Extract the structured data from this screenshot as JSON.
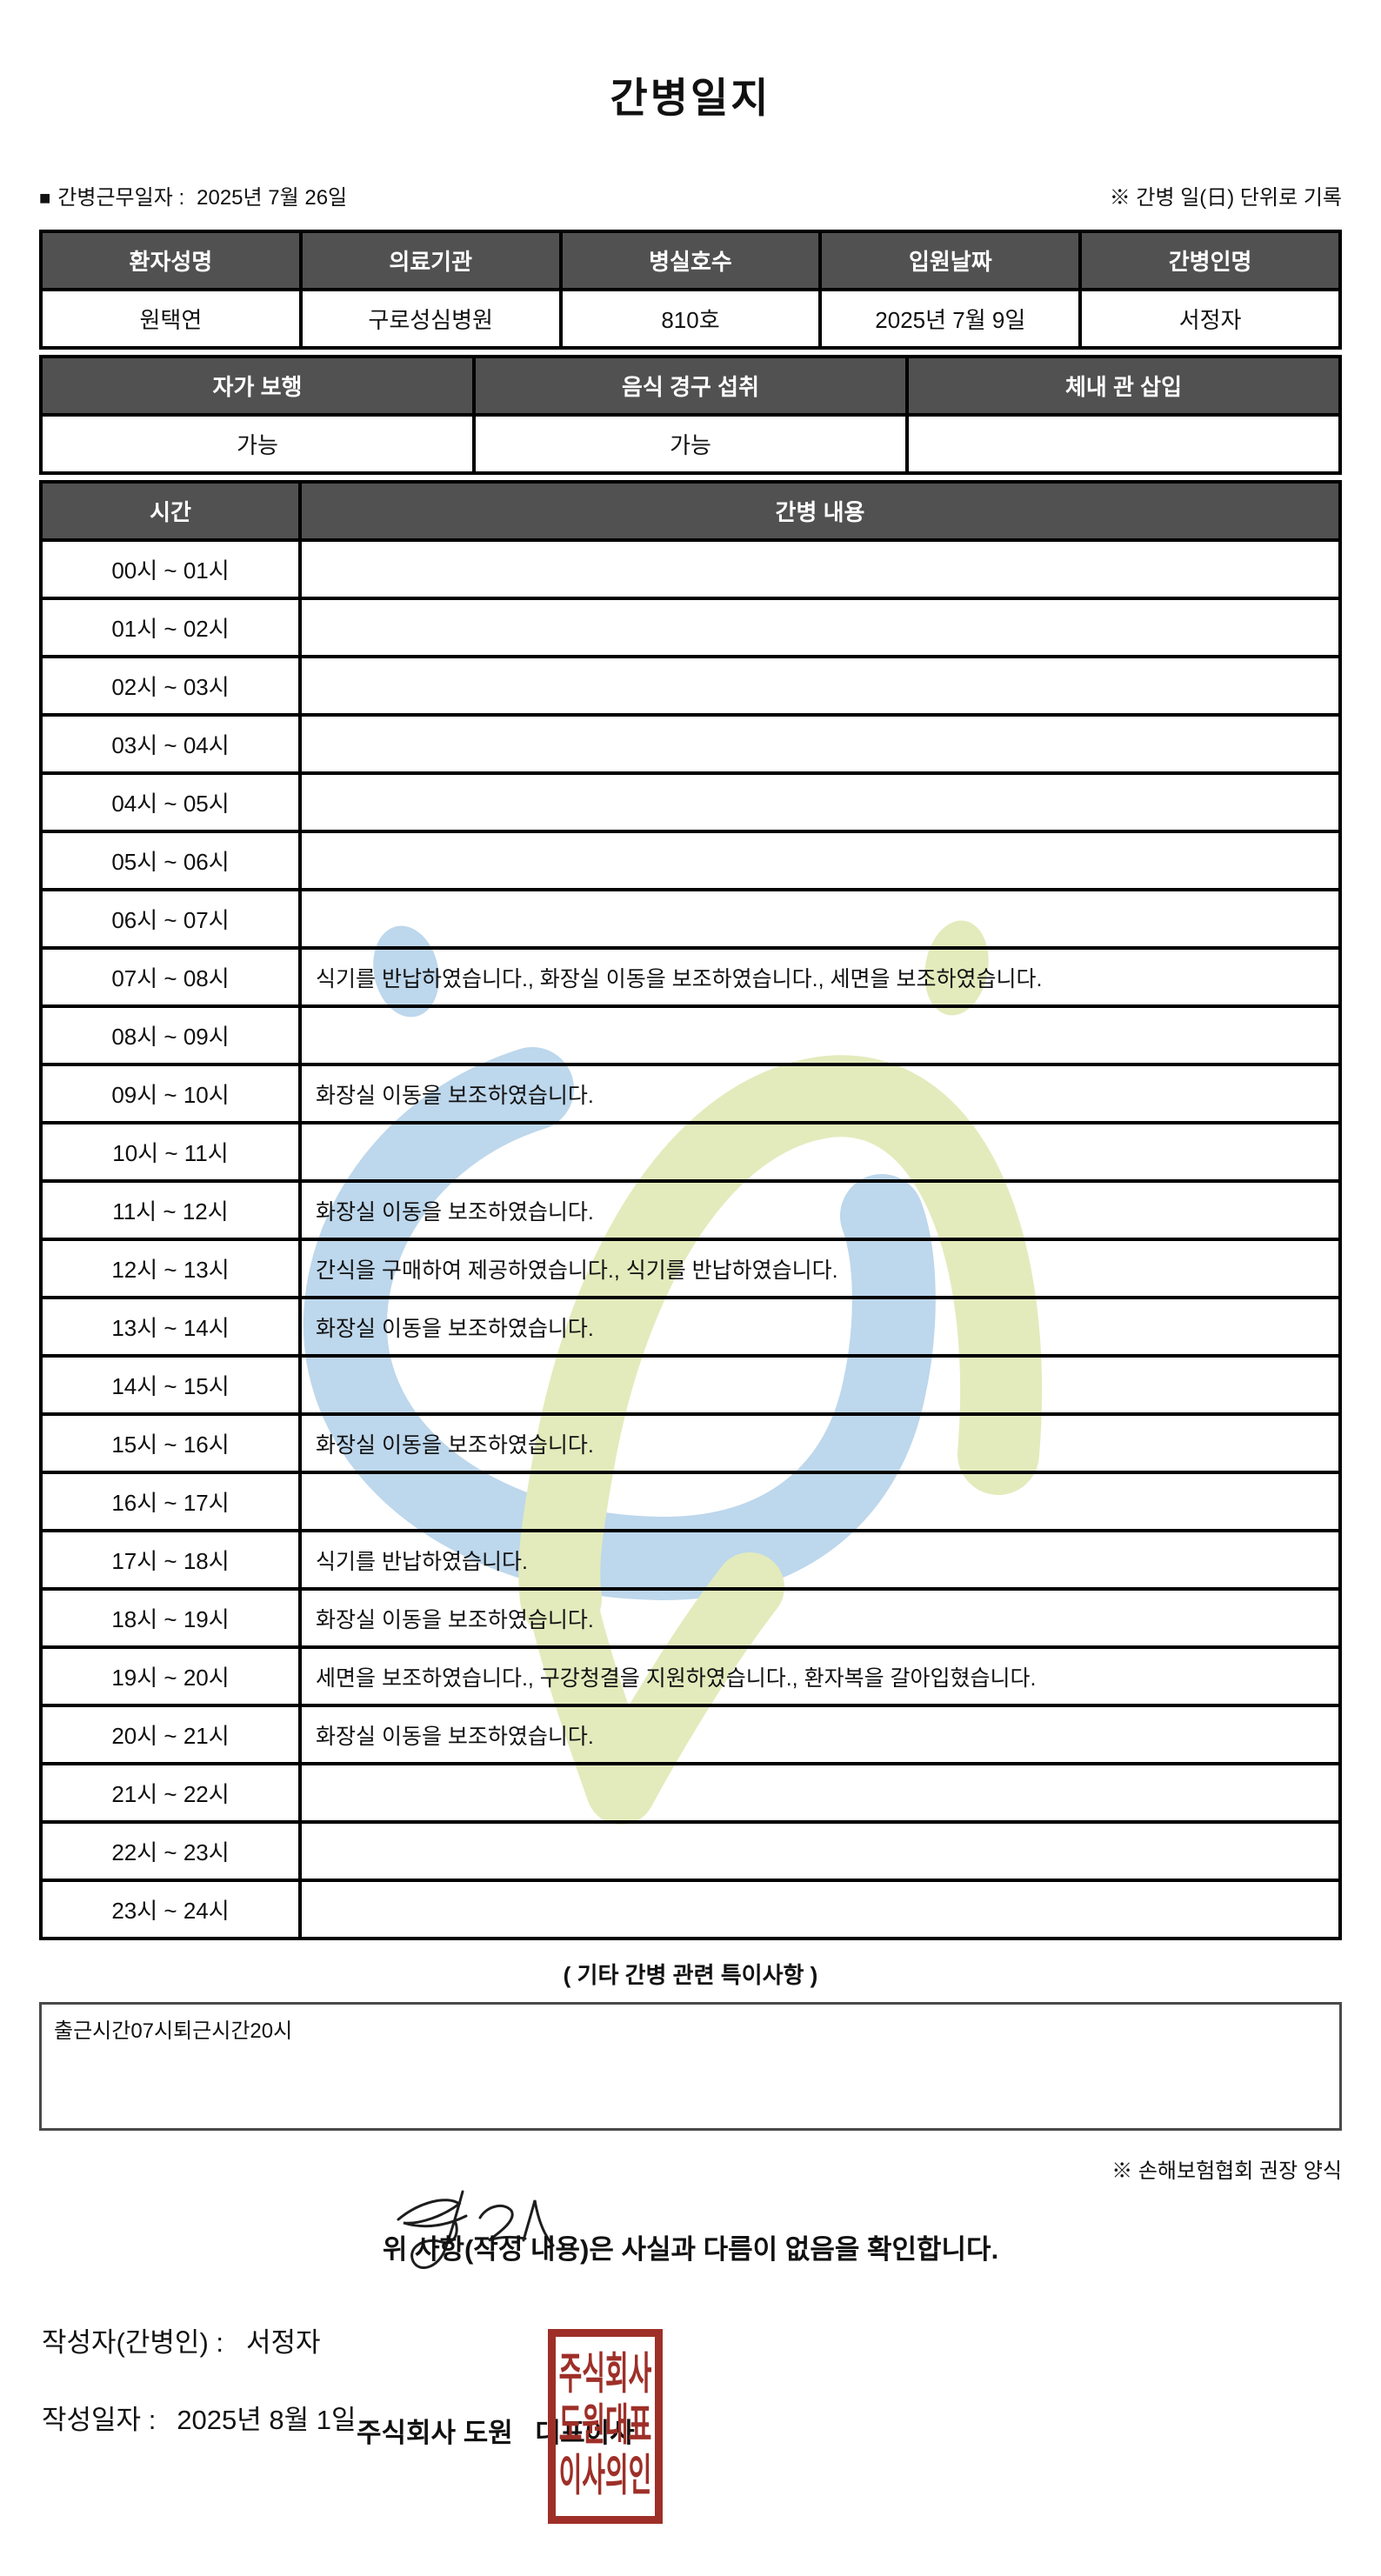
{
  "title": "간병일지",
  "meta": {
    "work_date_label": "간병근무일자 :",
    "work_date": "2025년 7월 26일",
    "unit_note": "※ 간병 일(日) 단위로 기록"
  },
  "patient_table": {
    "headers": [
      "환자성명",
      "의료기관",
      "병실호수",
      "입원날짜",
      "간병인명"
    ],
    "values": [
      "원택연",
      "구로성심병원",
      "810호",
      "2025년 7월 9일",
      "서정자"
    ]
  },
  "condition_table": {
    "headers": [
      "자가 보행",
      "음식 경구 섭취",
      "체내 관 삽입"
    ],
    "values": [
      "가능",
      "가능",
      ""
    ]
  },
  "care_table": {
    "time_header": "시간",
    "content_header": "간병 내용",
    "rows": [
      {
        "time": "00시 ~ 01시",
        "content": ""
      },
      {
        "time": "01시 ~ 02시",
        "content": ""
      },
      {
        "time": "02시 ~ 03시",
        "content": ""
      },
      {
        "time": "03시 ~ 04시",
        "content": ""
      },
      {
        "time": "04시 ~ 05시",
        "content": ""
      },
      {
        "time": "05시 ~ 06시",
        "content": ""
      },
      {
        "time": "06시 ~ 07시",
        "content": ""
      },
      {
        "time": "07시 ~ 08시",
        "content": "식기를 반납하였습니다., 화장실 이동을 보조하였습니다., 세면을 보조하였습니다."
      },
      {
        "time": "08시 ~ 09시",
        "content": ""
      },
      {
        "time": "09시 ~ 10시",
        "content": "화장실 이동을 보조하였습니다."
      },
      {
        "time": "10시 ~ 11시",
        "content": ""
      },
      {
        "time": "11시 ~ 12시",
        "content": "화장실 이동을 보조하였습니다."
      },
      {
        "time": "12시 ~ 13시",
        "content": "간식을 구매하여 제공하였습니다., 식기를 반납하였습니다."
      },
      {
        "time": "13시 ~ 14시",
        "content": "화장실 이동을 보조하였습니다."
      },
      {
        "time": "14시 ~ 15시",
        "content": ""
      },
      {
        "time": "15시 ~ 16시",
        "content": "화장실 이동을 보조하였습니다."
      },
      {
        "time": "16시 ~ 17시",
        "content": ""
      },
      {
        "time": "17시 ~ 18시",
        "content": "식기를 반납하였습니다."
      },
      {
        "time": "18시 ~ 19시",
        "content": "화장실 이동을 보조하였습니다."
      },
      {
        "time": "19시 ~ 20시",
        "content": "세면을 보조하였습니다., 구강청결을 지원하였습니다., 환자복을 갈아입혔습니다."
      },
      {
        "time": "20시 ~ 21시",
        "content": "화장실 이동을 보조하였습니다."
      },
      {
        "time": "21시 ~ 22시",
        "content": ""
      },
      {
        "time": "22시 ~ 23시",
        "content": ""
      },
      {
        "time": "23시 ~ 24시",
        "content": ""
      }
    ]
  },
  "notes": {
    "heading": "( 기타 간병 관련 특이사항 )",
    "content": "출근시간07시퇴근시간20시",
    "form_note": "※ 손해보험협회 권장 양식"
  },
  "footer": {
    "confirmation": "위 사항(작성 내용)은 사실과 다름이 없음을 확인합니다.",
    "writer_label": "작성자(간병인) :",
    "writer_name": "서정자",
    "date_label": "작성일자 :",
    "date_value": "2025년 8월 1일",
    "company": "주식회사 도원   대표이사",
    "stamp_lines": [
      "주식회사",
      "도원대표",
      "이사의인"
    ]
  },
  "colors": {
    "header_bg": "#515151",
    "border_black": "#000000",
    "stamp_red": "#9e2f28",
    "watermark_blue": "#bdd7ec",
    "watermark_green": "#e3ebbc"
  }
}
